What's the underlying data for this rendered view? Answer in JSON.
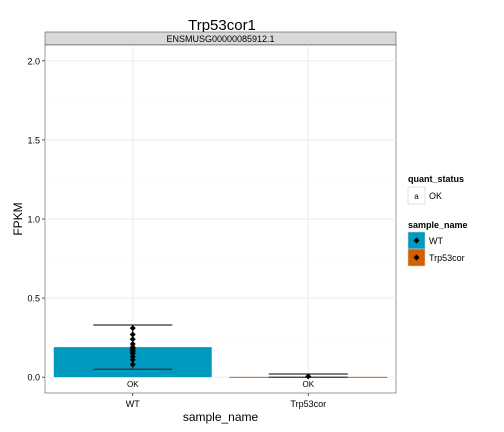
{
  "chart_data": {
    "type": "bar",
    "title": "Trp53cor1",
    "facet_label": "ENSMUSG00000085912.1",
    "xlabel": "sample_name",
    "ylabel": "FPKM",
    "categories": [
      "WT",
      "Trp53cor"
    ],
    "ylim": [
      -0.1,
      2.1
    ],
    "y_ticks": [
      0.0,
      0.5,
      1.0,
      1.5,
      2.0
    ],
    "y_tick_labels": [
      "0.0",
      "0.5",
      "1.0",
      "1.5",
      "2.0"
    ],
    "bars": [
      {
        "category": "WT",
        "value": 0.19,
        "error_low": 0.05,
        "error_high": 0.33,
        "quant_status": "OK"
      },
      {
        "category": "Trp53cor",
        "value": 0.002,
        "error_low": 0.0,
        "error_high": 0.02,
        "quant_status": "OK"
      }
    ],
    "points": [
      {
        "category": "WT",
        "values": [
          0.31,
          0.27,
          0.24,
          0.21,
          0.19,
          0.18,
          0.17,
          0.16,
          0.15,
          0.13,
          0.11,
          0.08
        ]
      },
      {
        "category": "Trp53cor",
        "values": [
          0.005
        ]
      }
    ],
    "legend": {
      "placement": "right",
      "quant_status": {
        "title": "quant_status",
        "key_glyph": "a",
        "items": [
          "OK"
        ]
      },
      "sample_name": {
        "title": "sample_name",
        "items": [
          "WT",
          "Trp53cor"
        ]
      }
    },
    "colors": {
      "WT": "#0099bf",
      "Trp53cor": "#d35f00",
      "panel_bg": "#ffffff",
      "strip_bg": "#d9d9d9",
      "grid_major": "#ebebeb",
      "grid_minor": "#f5f5f5"
    },
    "grid": true
  }
}
